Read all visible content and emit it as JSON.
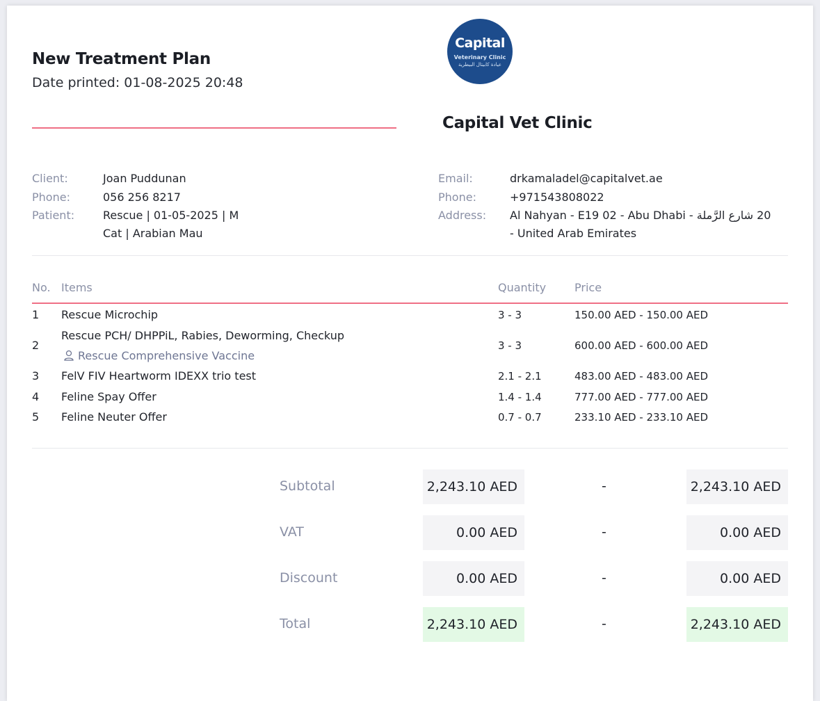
{
  "header": {
    "title": "New Treatment Plan",
    "date_printed": "Date printed: 01-08-2025 20:48",
    "logo": {
      "brand": "Capital",
      "sub": "Veterinary Clinic",
      "arabic": "عيادة كابيتال البيطرية"
    },
    "clinic_name": "Capital Vet Clinic"
  },
  "client": {
    "client_label": "Client:",
    "client_value": "Joan Puddunan",
    "phone_label": "Phone:",
    "phone_value": "056 256 8217",
    "patient_label": "Patient:",
    "patient_line1": "Rescue | 01-05-2025 | M",
    "patient_line2": "Cat | Arabian Mau"
  },
  "clinic": {
    "email_label": "Email:",
    "email_value": "drkamaladel@capitalvet.ae",
    "phone_label": "Phone:",
    "phone_value": "+971543808022",
    "address_label": "Address:",
    "address_line1": "20 شارع الرَّملة - Al Nahyan - E19 02 - Abu Dhabi",
    "address_line2": "- United Arab Emirates"
  },
  "table": {
    "headers": {
      "no": "No.",
      "items": "Items",
      "quantity": "Quantity",
      "price": "Price"
    },
    "rows": [
      {
        "no": "1",
        "item": "Rescue Microchip",
        "sub": "",
        "quantity": "3 - 3",
        "price": "150.00 AED - 150.00 AED"
      },
      {
        "no": "2",
        "item": "Rescue PCH/ DHPPiL, Rabies, Deworming, Checkup",
        "sub": "Rescue Comprehensive Vaccine",
        "quantity": "3 - 3",
        "price": "600.00 AED - 600.00 AED"
      },
      {
        "no": "3",
        "item": "FelV FIV Heartworm IDEXX trio test",
        "sub": "",
        "quantity": "2.1 - 2.1",
        "price": "483.00 AED - 483.00 AED"
      },
      {
        "no": "4",
        "item": "Feline Spay Offer",
        "sub": "",
        "quantity": "1.4 - 1.4",
        "price": "777.00 AED - 777.00 AED"
      },
      {
        "no": "5",
        "item": "Feline Neuter Offer",
        "sub": "",
        "quantity": "0.7 - 0.7",
        "price": "233.10 AED - 233.10 AED"
      }
    ]
  },
  "totals": {
    "dash": "-",
    "rows": [
      {
        "label": "Subtotal",
        "min": "2,243.10 AED",
        "max": "2,243.10 AED"
      },
      {
        "label": "VAT",
        "min": "0.00 AED",
        "max": "0.00 AED"
      },
      {
        "label": "Discount",
        "min": "0.00 AED",
        "max": "0.00 AED"
      },
      {
        "label": "Total",
        "min": "2,243.10 AED",
        "max": "2,243.10 AED"
      }
    ]
  },
  "colors": {
    "accent_line": "#ef6f85",
    "logo_bg": "#1d4c8c",
    "total_highlight": "#e3f9e5",
    "box_bg": "#f4f4f6"
  }
}
